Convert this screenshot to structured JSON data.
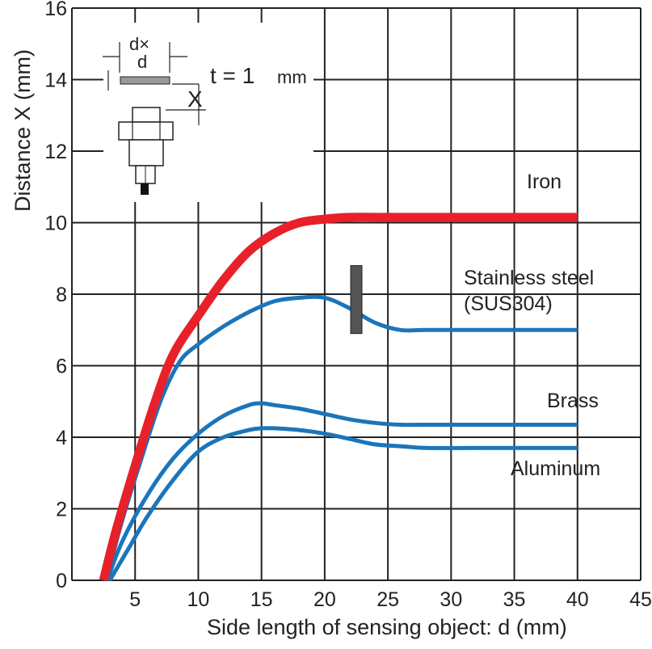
{
  "chart_data": {
    "type": "line",
    "xlabel": "Side length of sensing object: d (mm)",
    "ylabel": "Distance X (mm)",
    "xlim": [
      0,
      45
    ],
    "ylim": [
      0,
      16
    ],
    "xticks": [
      5,
      10,
      15,
      20,
      25,
      30,
      35,
      40,
      45
    ],
    "yticks": [
      0,
      2,
      4,
      6,
      8,
      10,
      12,
      14,
      16
    ],
    "grid": true,
    "legend": "labels placed next to each curve on the right",
    "series": [
      {
        "name": "Iron",
        "color": "#e8202a",
        "x": [
          2.5,
          3.5,
          5,
          6.5,
          8,
          10,
          12,
          14,
          16,
          18,
          20,
          22,
          24,
          26,
          30,
          35,
          40
        ],
        "y": [
          0,
          1.4,
          3.2,
          4.9,
          6.3,
          7.4,
          8.4,
          9.2,
          9.7,
          10.0,
          10.1,
          10.15,
          10.15,
          10.15,
          10.15,
          10.15,
          10.15
        ]
      },
      {
        "name": "Stainless steel (SUS304)",
        "color": "#1b75bb",
        "x": [
          2.7,
          4,
          5.5,
          7,
          8.5,
          10,
          12,
          14,
          16,
          18,
          20,
          22,
          24,
          26,
          28,
          32,
          36,
          40
        ],
        "y": [
          0,
          1.7,
          3.4,
          5.0,
          6.1,
          6.6,
          7.1,
          7.5,
          7.8,
          7.9,
          7.9,
          7.6,
          7.2,
          7.0,
          7.0,
          7.0,
          7.0,
          7.0
        ]
      },
      {
        "name": "Brass",
        "color": "#1b75bb",
        "x": [
          2.8,
          4,
          6,
          8,
          10,
          12,
          14,
          15,
          16,
          18,
          20,
          22,
          24,
          26,
          28,
          32,
          36,
          40
        ],
        "y": [
          0,
          1.1,
          2.4,
          3.4,
          4.1,
          4.6,
          4.9,
          4.95,
          4.9,
          4.8,
          4.65,
          4.5,
          4.4,
          4.35,
          4.35,
          4.35,
          4.35,
          4.35
        ]
      },
      {
        "name": "Aluminum",
        "color": "#1b75bb",
        "x": [
          3,
          4.5,
          6,
          8,
          10,
          12,
          14,
          15,
          16,
          18,
          20,
          22,
          24,
          26,
          28,
          32,
          36,
          40
        ],
        "y": [
          0,
          0.9,
          1.8,
          2.8,
          3.6,
          4.0,
          4.2,
          4.25,
          4.25,
          4.2,
          4.1,
          3.95,
          3.8,
          3.75,
          3.7,
          3.7,
          3.7,
          3.7
        ]
      }
    ],
    "series_labels": {
      "iron": "Iron",
      "stainless_line1": "Stainless steel",
      "stainless_line2": "(SUS304)",
      "brass": "Brass",
      "aluminum": "Aluminum"
    },
    "inset": {
      "dim_top": "d×",
      "dim_d": "d",
      "thickness": "t = 1",
      "thickness_unit": "mm",
      "distance": "X"
    },
    "colors": {
      "iron": "#e8202a",
      "nonferrous": "#1b75bb",
      "grid": "#222222",
      "marker": "#555555"
    }
  }
}
